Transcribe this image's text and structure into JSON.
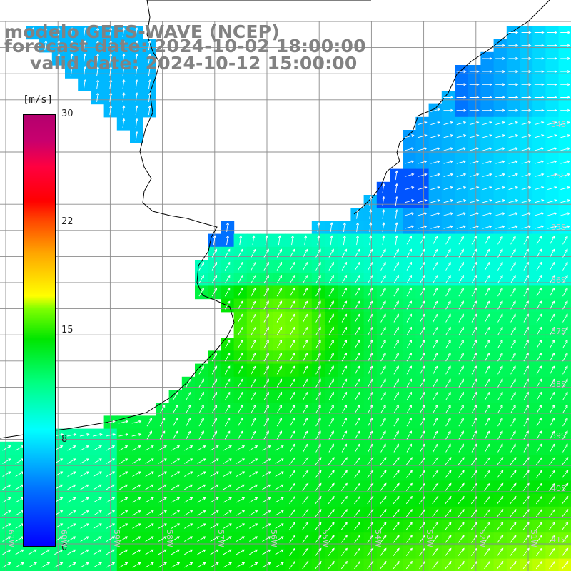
{
  "header": {
    "line1": "modelo GEFS-WAVE (NCEP)",
    "line2": "forecast date: 2024-10-02 18:00:00",
    "line3": "valid date: 2024-10-12 15:00:00"
  },
  "colorbar": {
    "units": "[m/s]",
    "ticks": [
      "30",
      "22",
      "15",
      "8",
      "0"
    ],
    "colors": [
      "#0000ff",
      "#00ffff",
      "#00e600",
      "#ffff00",
      "#ff0000",
      "#b4006e"
    ]
  },
  "lat_labels": [
    "34S",
    "35S",
    "36S",
    "37S",
    "38S",
    "39S",
    "40S",
    "41S"
  ],
  "lon_labels": [
    "61W",
    "60W",
    "59W",
    "58W",
    "57W",
    "56W",
    "55W",
    "54W",
    "53W",
    "52W",
    "51W"
  ],
  "colors": {
    "land": "#ffffff",
    "grid": "#8c8c8c",
    "coast": "#000000",
    "arrow": "#ffffff",
    "label": "#c8c8c8"
  }
}
